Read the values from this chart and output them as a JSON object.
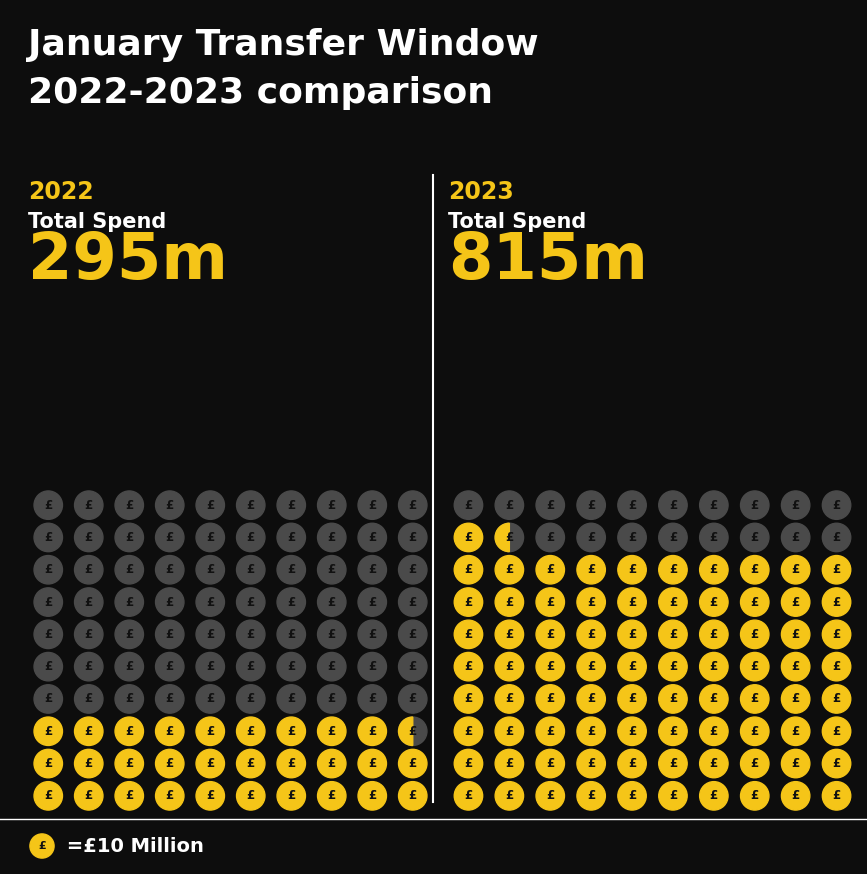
{
  "title_line1": "January Transfer Window",
  "title_line2": "2022-2023 comparison",
  "background_color": "#0d0d0d",
  "title_color": "#ffffff",
  "gold_color": "#F5C518",
  "grey_color": "#4a4a4a",
  "coin_text_color": "#1a1a1a",
  "year_label_color": "#F5C518",
  "total_spend_color": "#ffffff",
  "amount_color": "#F5C518",
  "legend_text_color": "#ffffff",
  "year_2022": "2022",
  "year_2023": "2023",
  "spend_label": "Total Spend",
  "amount_2022": "295m",
  "amount_2023": "815m",
  "value_2022": 295,
  "value_2023": 815,
  "coin_value": 10,
  "cols": 10,
  "rows": 10,
  "legend_text": " =£10 Million",
  "divider_color": "#ffffff",
  "title_fontsize": 26,
  "year_fontsize": 17,
  "spend_fontsize": 15,
  "amount_fontsize": 46,
  "legend_fontsize": 14
}
